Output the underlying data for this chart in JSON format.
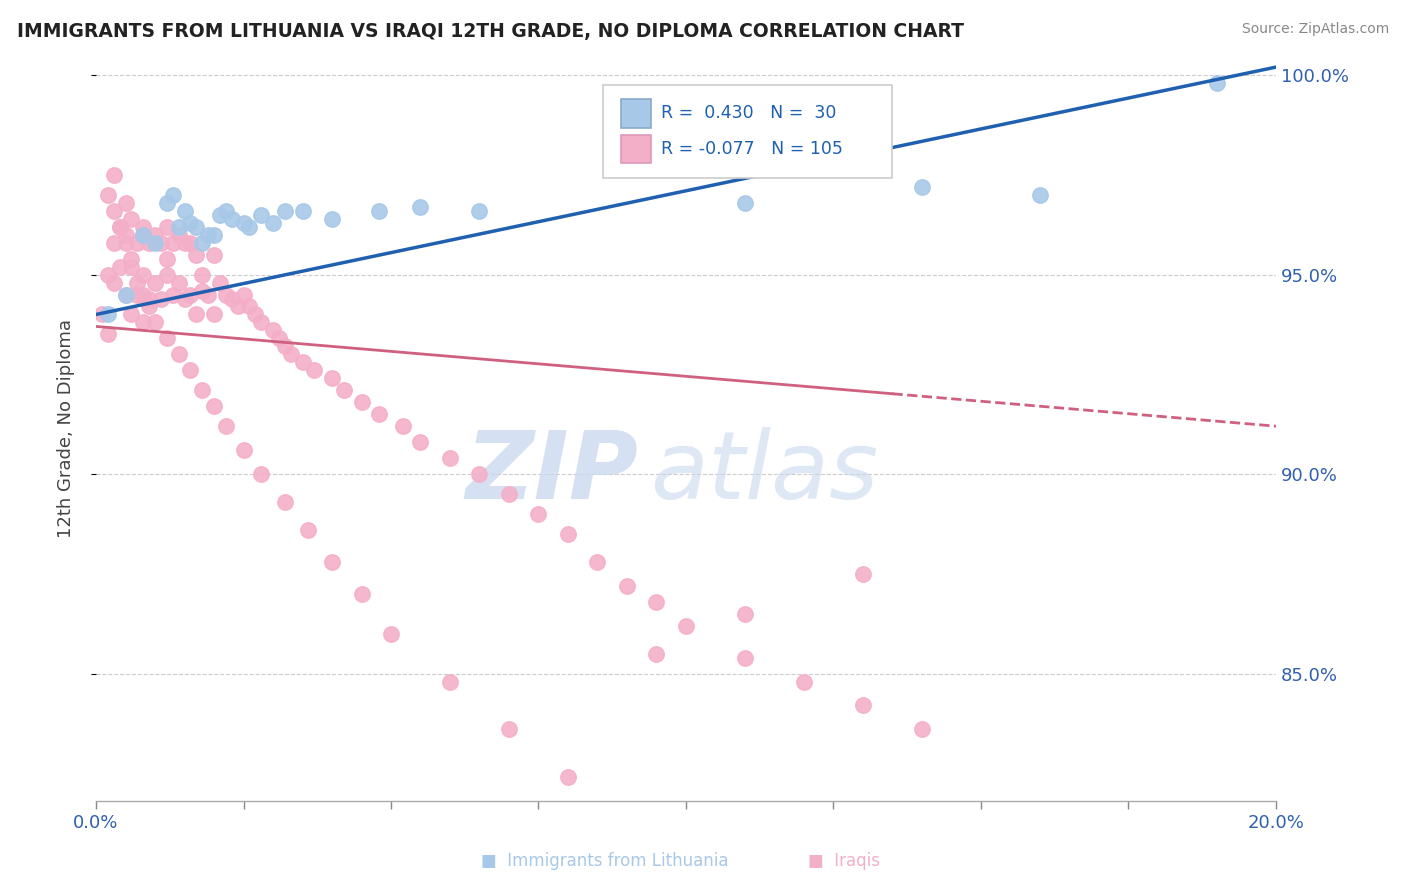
{
  "title": "IMMIGRANTS FROM LITHUANIA VS IRAQI 12TH GRADE, NO DIPLOMA CORRELATION CHART",
  "source": "Source: ZipAtlas.com",
  "ylabel": "12th Grade, No Diploma",
  "xlim": [
    0.0,
    0.2
  ],
  "ylim": [
    0.818,
    1.005
  ],
  "xtick_positions": [
    0.0,
    0.025,
    0.05,
    0.075,
    0.1,
    0.125,
    0.15,
    0.175,
    0.2
  ],
  "xtick_labels": [
    "0.0%",
    "",
    "",
    "",
    "",
    "",
    "",
    "",
    "20.0%"
  ],
  "ytick_vals": [
    0.85,
    0.9,
    0.95,
    1.0
  ],
  "ytick_labels": [
    "85.0%",
    "90.0%",
    "95.0%",
    "100.0%"
  ],
  "blue_color": "#a8c8e8",
  "pink_color": "#f4afc8",
  "blue_line_color": "#2060b0",
  "pink_line_color": "#d06080",
  "watermark_zip": "ZIP",
  "watermark_atlas": "atlas",
  "blue_scatter_x": [
    0.002,
    0.005,
    0.008,
    0.01,
    0.012,
    0.013,
    0.014,
    0.015,
    0.016,
    0.017,
    0.018,
    0.019,
    0.02,
    0.021,
    0.022,
    0.023,
    0.025,
    0.026,
    0.028,
    0.03,
    0.032,
    0.035,
    0.04,
    0.048,
    0.055,
    0.065,
    0.11,
    0.14,
    0.16,
    0.19
  ],
  "blue_scatter_y": [
    0.94,
    0.945,
    0.96,
    0.958,
    0.968,
    0.97,
    0.962,
    0.966,
    0.963,
    0.962,
    0.958,
    0.96,
    0.96,
    0.965,
    0.966,
    0.964,
    0.963,
    0.962,
    0.965,
    0.963,
    0.966,
    0.966,
    0.964,
    0.966,
    0.967,
    0.966,
    0.968,
    0.972,
    0.97,
    0.998
  ],
  "pink_scatter_x": [
    0.001,
    0.002,
    0.002,
    0.003,
    0.003,
    0.004,
    0.004,
    0.005,
    0.005,
    0.006,
    0.006,
    0.006,
    0.007,
    0.007,
    0.008,
    0.008,
    0.008,
    0.009,
    0.009,
    0.01,
    0.01,
    0.011,
    0.011,
    0.012,
    0.012,
    0.013,
    0.013,
    0.014,
    0.014,
    0.015,
    0.015,
    0.016,
    0.016,
    0.017,
    0.017,
    0.018,
    0.019,
    0.02,
    0.02,
    0.021,
    0.022,
    0.023,
    0.024,
    0.025,
    0.026,
    0.027,
    0.028,
    0.03,
    0.031,
    0.032,
    0.033,
    0.035,
    0.037,
    0.04,
    0.042,
    0.045,
    0.048,
    0.052,
    0.055,
    0.06,
    0.065,
    0.07,
    0.075,
    0.08,
    0.085,
    0.09,
    0.095,
    0.1,
    0.11,
    0.12,
    0.13,
    0.14,
    0.002,
    0.003,
    0.004,
    0.005,
    0.006,
    0.007,
    0.008,
    0.009,
    0.01,
    0.012,
    0.014,
    0.016,
    0.018,
    0.02,
    0.022,
    0.025,
    0.028,
    0.032,
    0.036,
    0.04,
    0.045,
    0.05,
    0.06,
    0.07,
    0.08,
    0.095,
    0.11,
    0.13,
    0.003,
    0.005,
    0.008,
    0.012,
    0.018
  ],
  "pink_scatter_y": [
    0.94,
    0.95,
    0.935,
    0.958,
    0.948,
    0.962,
    0.952,
    0.96,
    0.945,
    0.964,
    0.952,
    0.94,
    0.958,
    0.945,
    0.962,
    0.95,
    0.938,
    0.958,
    0.944,
    0.96,
    0.948,
    0.958,
    0.944,
    0.962,
    0.95,
    0.958,
    0.945,
    0.96,
    0.948,
    0.958,
    0.944,
    0.958,
    0.945,
    0.955,
    0.94,
    0.95,
    0.945,
    0.955,
    0.94,
    0.948,
    0.945,
    0.944,
    0.942,
    0.945,
    0.942,
    0.94,
    0.938,
    0.936,
    0.934,
    0.932,
    0.93,
    0.928,
    0.926,
    0.924,
    0.921,
    0.918,
    0.915,
    0.912,
    0.908,
    0.904,
    0.9,
    0.895,
    0.89,
    0.885,
    0.878,
    0.872,
    0.868,
    0.862,
    0.854,
    0.848,
    0.842,
    0.836,
    0.97,
    0.966,
    0.962,
    0.958,
    0.954,
    0.948,
    0.945,
    0.942,
    0.938,
    0.934,
    0.93,
    0.926,
    0.921,
    0.917,
    0.912,
    0.906,
    0.9,
    0.893,
    0.886,
    0.878,
    0.87,
    0.86,
    0.848,
    0.836,
    0.824,
    0.855,
    0.865,
    0.875,
    0.975,
    0.968,
    0.96,
    0.954,
    0.946
  ],
  "blue_line_x0": 0.0,
  "blue_line_y0": 0.94,
  "blue_line_x1": 0.2,
  "blue_line_y1": 1.002,
  "pink_line_x0": 0.0,
  "pink_line_y0": 0.937,
  "pink_line_x1_solid": 0.135,
  "pink_line_x1": 0.2,
  "pink_line_y1": 0.912
}
